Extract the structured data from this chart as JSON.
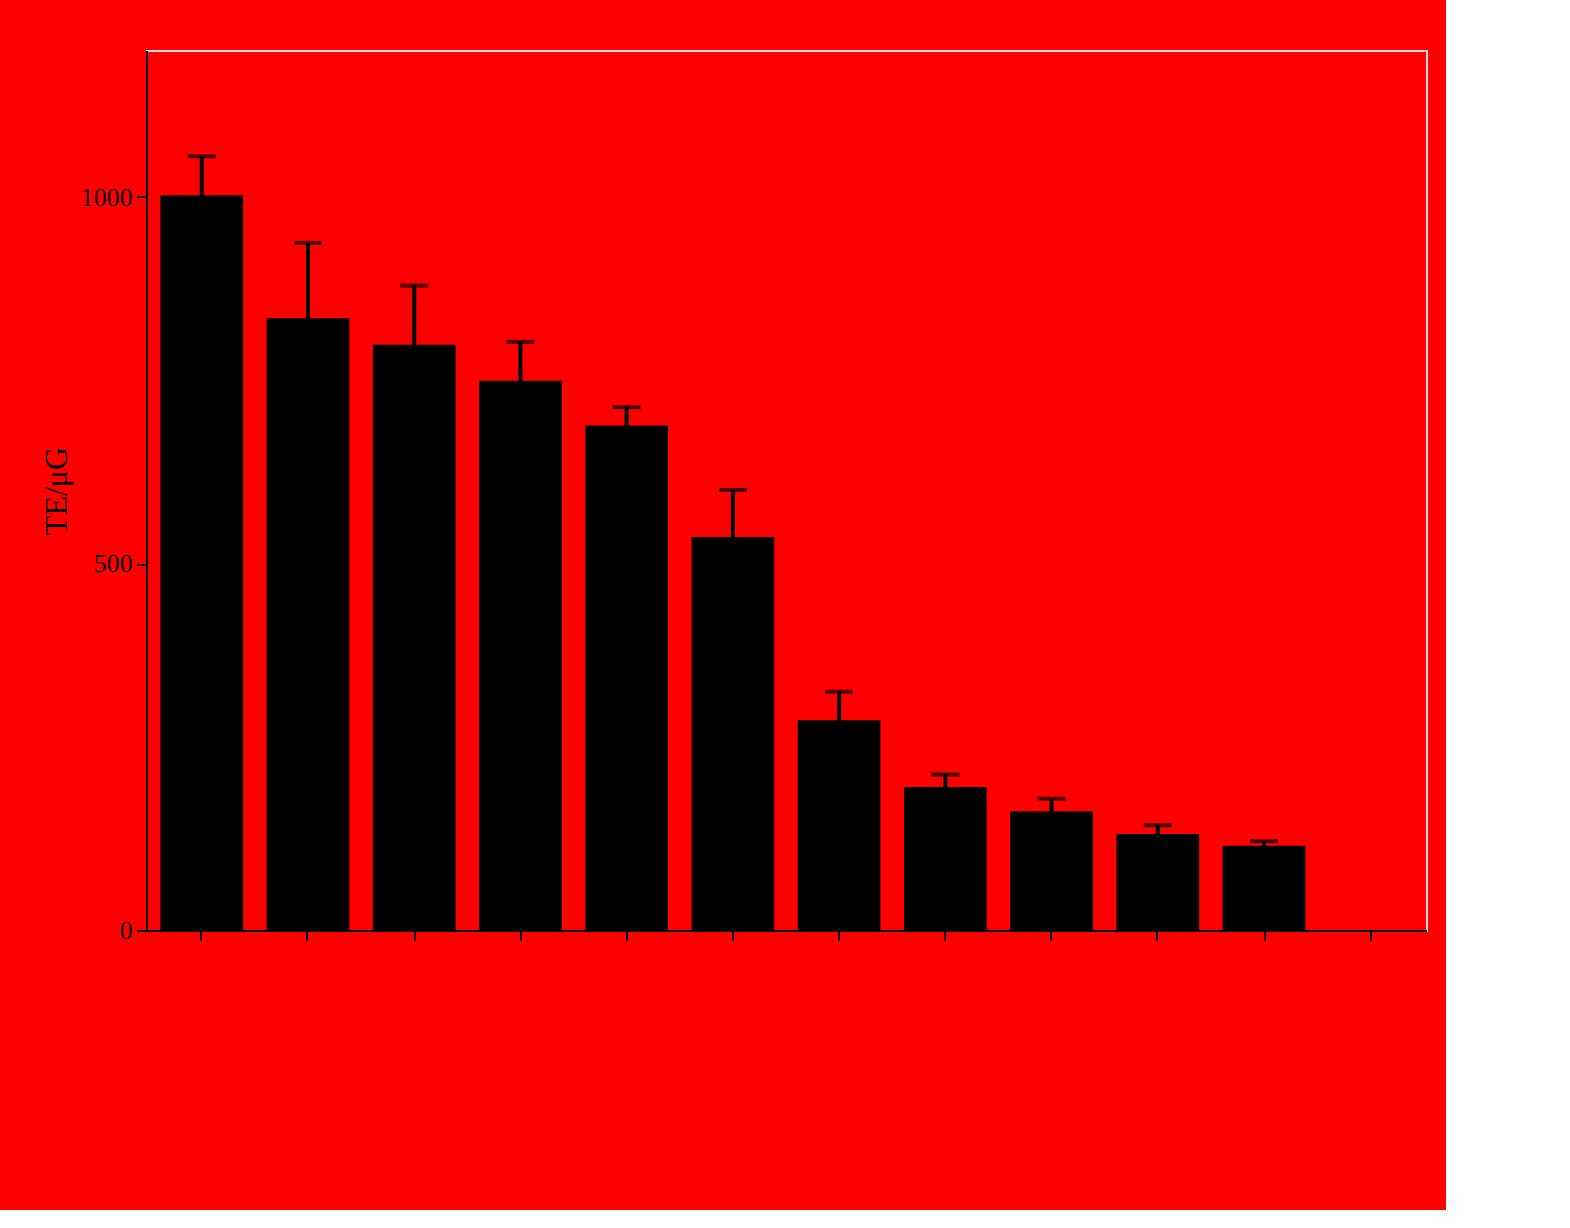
{
  "chart_data": {
    "type": "bar",
    "ylabel": "TE/μG",
    "categories": [
      null,
      null,
      null,
      null,
      null,
      null,
      null,
      null,
      null,
      null,
      null,
      null
    ],
    "values": [
      1000,
      832,
      796,
      747,
      686,
      534,
      284,
      193,
      160,
      129,
      113,
      null
    ],
    "errors": [
      [
        1000,
        1055
      ],
      [
        832,
        937
      ],
      [
        796,
        879
      ],
      [
        747,
        802
      ],
      [
        686,
        713
      ],
      [
        534,
        600
      ],
      [
        284,
        325
      ],
      [
        193,
        212
      ],
      [
        160,
        179
      ],
      [
        129,
        143
      ],
      [
        113,
        121
      ],
      null
    ],
    "color": "#000000",
    "ylim": [
      0,
      1200
    ],
    "yticks": [
      0,
      500,
      1000
    ],
    "grid": false
  }
}
